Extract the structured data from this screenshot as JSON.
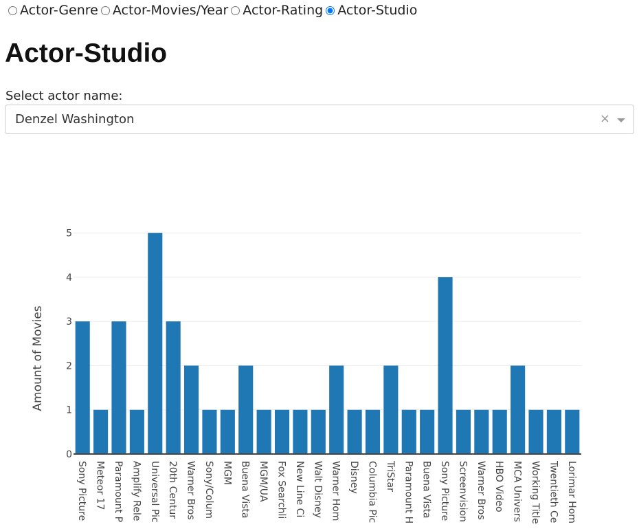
{
  "tabs": {
    "options": [
      "Actor-Genre",
      "Actor-Movies/Year",
      "Actor-Rating",
      "Actor-Studio"
    ],
    "selected": 3
  },
  "heading": "Actor-Studio",
  "dropdown": {
    "label": "Select actor name:",
    "value": "Denzel Washington"
  },
  "chart_data": {
    "type": "bar",
    "y_label": "Amount of Movies",
    "color": "#1f77b4",
    "grid": true,
    "categories": [
      "Sony Picture",
      "Meteor 17",
      "Paramount P",
      "Amplify Rele",
      "Universal Pic",
      "20th Centur",
      "Warner Bros",
      "Sony/Colum",
      "MGM",
      "Buena Vista",
      "MGM/UA",
      "Fox Searchli",
      "New Line Ci",
      "Walt Disney",
      "Warner Hom",
      "Disney",
      "Columbia Pic",
      "TriStar",
      "Paramount H",
      "Buena Vista",
      "Sony Picture",
      "Screenvision",
      "Warner Bros",
      "HBO Video",
      "MCA Univers",
      "Working Title",
      "Twentieth Ce",
      "Lorimar Hom"
    ],
    "values": [
      3,
      1,
      3,
      1,
      5,
      3,
      2,
      1,
      1,
      2,
      1,
      1,
      1,
      1,
      2,
      1,
      1,
      2,
      1,
      1,
      4,
      1,
      1,
      1,
      2,
      1,
      1,
      1
    ],
    "ylim": [
      0,
      5.26
    ],
    "yticks": [
      0,
      1,
      2,
      3,
      4,
      5
    ]
  }
}
